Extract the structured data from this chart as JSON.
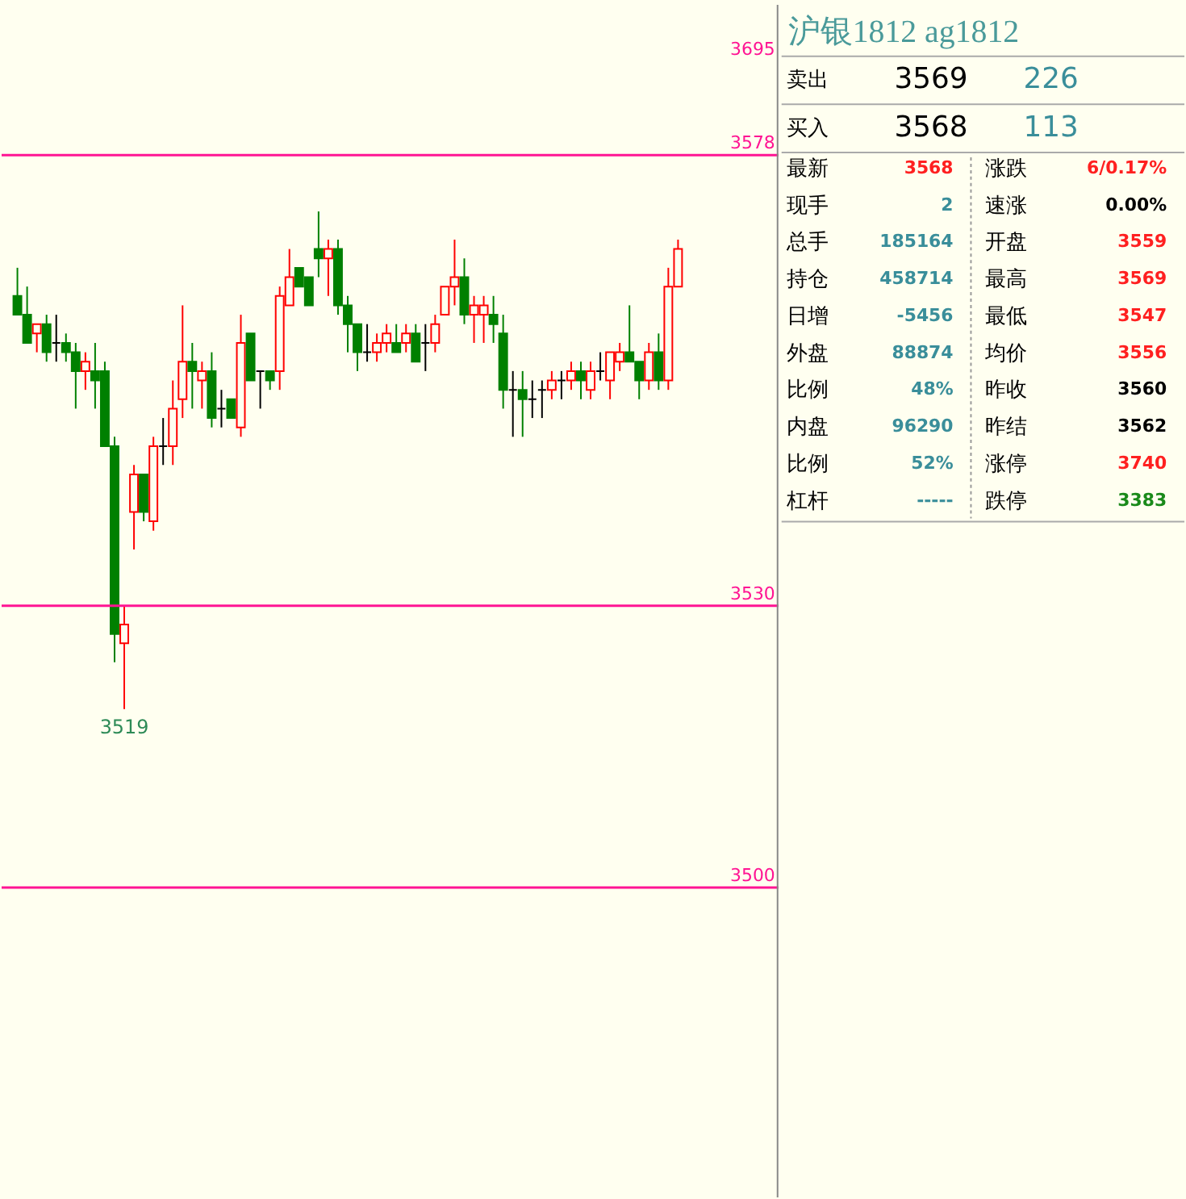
{
  "chart_data": [
    {
      "type": "candlestick",
      "categories": [
        null,
        null,
        null,
        null,
        null,
        null,
        null,
        null,
        null,
        null,
        null,
        null,
        null,
        null,
        null,
        null,
        null,
        null,
        null,
        null,
        null,
        null,
        null,
        null,
        null,
        null,
        null,
        null,
        null,
        null,
        null,
        null,
        null,
        null,
        null,
        null,
        null,
        null,
        null,
        null,
        null,
        null,
        null,
        null,
        null,
        null,
        null,
        null,
        null,
        null,
        null,
        null,
        null,
        null,
        null,
        null,
        null,
        null,
        null,
        null,
        null,
        null,
        null,
        null,
        null,
        null,
        null,
        null,
        null
      ],
      "ohlc": [
        [
          3563,
          3566,
          3561,
          3561
        ],
        [
          3561,
          3564,
          3558,
          3558
        ],
        [
          3559,
          3560,
          3557,
          3560
        ],
        [
          3560,
          3561,
          3556,
          3557
        ],
        [
          3558,
          3561,
          3556,
          3558
        ],
        [
          3558,
          3559,
          3556,
          3557
        ],
        [
          3557,
          3558,
          3551,
          3555
        ],
        [
          3555,
          3557,
          3553,
          3556
        ],
        [
          3555,
          3558,
          3551,
          3554
        ],
        [
          3555,
          3556,
          3547,
          3547
        ],
        [
          3547,
          3548,
          3524,
          3527
        ],
        [
          3526,
          3530,
          3519,
          3528
        ],
        [
          3540,
          3545,
          3536,
          3544
        ],
        [
          3544,
          3544,
          3539,
          3540
        ],
        [
          3539,
          3548,
          3538,
          3547
        ],
        [
          3547,
          3550,
          3545,
          3547
        ],
        [
          3547,
          3554,
          3545,
          3551
        ],
        [
          3552,
          3562,
          3550,
          3556
        ],
        [
          3556,
          3558,
          3551,
          3555
        ],
        [
          3554,
          3556,
          3551,
          3555
        ],
        [
          3555,
          3557,
          3549,
          3550
        ],
        [
          3551,
          3553,
          3549,
          3551
        ],
        [
          3552,
          3552,
          3550,
          3550
        ],
        [
          3549,
          3561,
          3548,
          3558
        ],
        [
          3559,
          3559,
          3554,
          3554
        ],
        [
          3555,
          3555,
          3551,
          3555
        ],
        [
          3555,
          3555,
          3553,
          3554
        ],
        [
          3555,
          3564,
          3553,
          3563
        ],
        [
          3562,
          3568,
          3562,
          3565
        ],
        [
          3566,
          3566,
          3564,
          3564
        ],
        [
          3565,
          3565,
          3562,
          3562
        ],
        [
          3568,
          3572,
          3565,
          3567
        ],
        [
          3567,
          3569,
          3563,
          3568
        ],
        [
          3568,
          3569,
          3561,
          3562
        ],
        [
          3562,
          3563,
          3557,
          3560
        ],
        [
          3560,
          3560,
          3555,
          3557
        ],
        [
          3557,
          3560,
          3556,
          3557
        ],
        [
          3557,
          3559,
          3556,
          3558
        ],
        [
          3558,
          3560,
          3557,
          3559
        ],
        [
          3558,
          3560,
          3557,
          3557
        ],
        [
          3558,
          3560,
          3557,
          3559
        ],
        [
          3559,
          3560,
          3556,
          3556
        ],
        [
          3558,
          3560,
          3555,
          3558
        ],
        [
          3558,
          3561,
          3557,
          3560
        ],
        [
          3561,
          3564,
          3561,
          3564
        ],
        [
          3564,
          3569,
          3562,
          3565
        ],
        [
          3565,
          3567,
          3560,
          3561
        ],
        [
          3561,
          3563,
          3558,
          3562
        ],
        [
          3561,
          3563,
          3558,
          3562
        ],
        [
          3561,
          3563,
          3558,
          3560
        ],
        [
          3559,
          3561,
          3551,
          3553
        ],
        [
          3553,
          3555,
          3548,
          3553
        ],
        [
          3553,
          3555,
          3548,
          3552
        ],
        [
          3552,
          3554,
          3550,
          3552
        ],
        [
          3553,
          3554,
          3550,
          3553
        ],
        [
          3553,
          3555,
          3552,
          3554
        ],
        [
          3554,
          3555,
          3552,
          3554
        ],
        [
          3554,
          3556,
          3553,
          3555
        ],
        [
          3555,
          3556,
          3552,
          3554
        ],
        [
          3553,
          3556,
          3552,
          3555
        ],
        [
          3555,
          3557,
          3554,
          3555
        ],
        [
          3554,
          3557,
          3552,
          3557
        ],
        [
          3556,
          3558,
          3555,
          3557
        ],
        [
          3557,
          3562,
          3556,
          3556
        ],
        [
          3556,
          3556,
          3552,
          3554
        ],
        [
          3554,
          3558,
          3553,
          3557
        ],
        [
          3557,
          3559,
          3553,
          3554
        ],
        [
          3554,
          3566,
          3553,
          3564
        ],
        [
          3564,
          3569,
          3564,
          3568
        ]
      ],
      "ylim": [
        3467,
        3594
      ],
      "tick_labels": false,
      "ref_lines": [
        {
          "axis": "y",
          "value": 3578,
          "label": "3578",
          "color": "#ff1493"
        },
        {
          "axis": "y",
          "value": 3530,
          "label": "3530",
          "color": "#ff1493"
        },
        {
          "axis": "y",
          "value": 3500,
          "label": "3500",
          "color": "#ff1493"
        }
      ],
      "annotations": [
        "3695",
        {
          "text": "3519",
          "y": 3519
        }
      ]
    },
    {
      "type": "other",
      "title": "沪银1812  ag1812",
      "annotations": [
        "卖出",
        "3569",
        "226",
        "买入",
        "3568",
        "113",
        "最新",
        "3568",
        "涨跌",
        "6/0.17%",
        "现手",
        "2",
        "速涨",
        "0.00%",
        "总手",
        "185164",
        "开盘",
        "3559",
        "持仓",
        "458714",
        "最高",
        "3569",
        "日增",
        "-5456",
        "最低",
        "3547",
        "外盘",
        "88874",
        "均价",
        "3556",
        "比例",
        "48%",
        "昨收",
        "3560",
        "内盘",
        "96290",
        "昨结",
        "3562",
        "比例",
        "52%",
        "涨停",
        "3740",
        "杠杆",
        "-----",
        "跌停",
        "3383"
      ]
    }
  ]
}
